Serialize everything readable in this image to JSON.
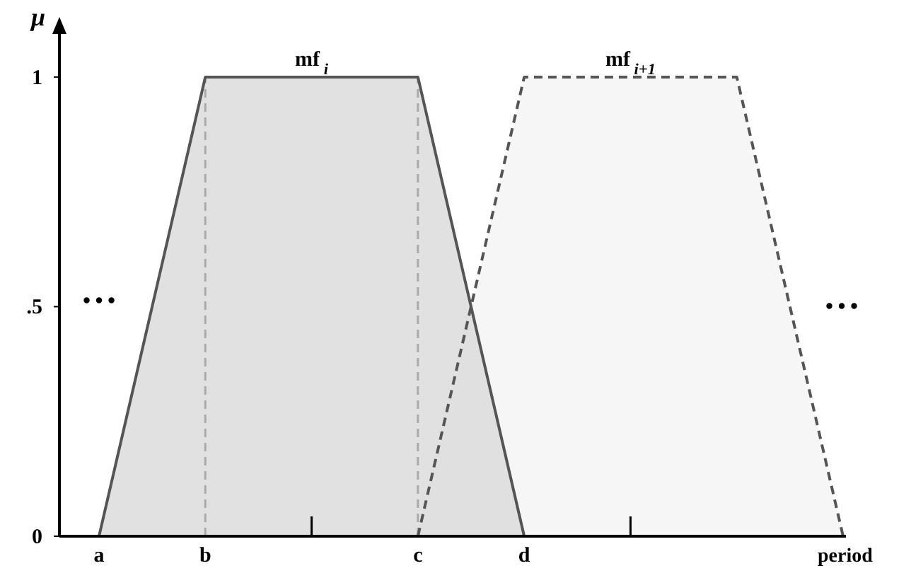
{
  "chart_data": {
    "type": "area",
    "xlabel": "period",
    "ylabel": "μ",
    "categories": [
      "a",
      "b",
      null,
      "c",
      "d",
      null,
      null,
      null
    ],
    "ylim": [
      0,
      1.1
    ],
    "yticks": [
      0,
      {
        "value": 0.5,
        "label": ".5"
      },
      1
    ],
    "series": [
      {
        "name": "mf$_{i+1}$",
        "color": "#f4f4f4",
        "values": [
          null,
          null,
          null,
          0,
          1,
          null,
          1,
          0
        ],
        "line_style": "dashed"
      },
      {
        "name": "mf$_{i}$",
        "color": "#dcdcdc",
        "values": [
          0,
          1,
          null,
          1,
          0,
          null,
          null,
          null
        ],
        "line_style": "solid"
      }
    ],
    "ref_lines": [
      {
        "axis": "x",
        "value": "b",
        "label": null,
        "color": "#aaaaaa",
        "line_style": "dashed"
      },
      {
        "axis": "x",
        "value": "c",
        "label": null,
        "color": "#aaaaaa",
        "line_style": "dashed"
      }
    ],
    "annotations": [
      "…",
      "…"
    ],
    "grid": false,
    "legend": false
  }
}
